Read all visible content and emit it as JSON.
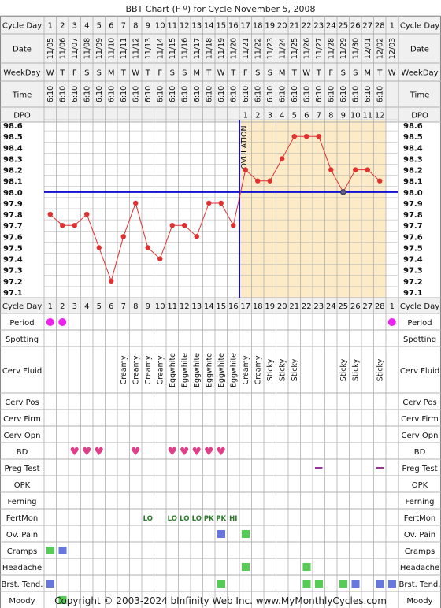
{
  "title": "BBT Chart (F º) for Cycle November 5, 2008",
  "footer": "Copyright © 2003-2024 bInfinity Web Inc.    www.MyMonthlyCycles.com",
  "labels": {
    "cycle_day": "Cycle Day",
    "date": "Date",
    "weekday": "WeekDay",
    "time": "Time",
    "dpo": "DPO",
    "ovulation": "OVULATION"
  },
  "colors": {
    "grid_line": "#b0b0b0",
    "header_bg": "#f0f0f0",
    "post_ovulation_bg": "#fdebc8",
    "temp_line": "#e03030",
    "coverline": "#1010d0",
    "ovulation_line": "#1010d0",
    "period_dot": "#ee22ee",
    "bd_heart": "#e0408a",
    "fertmon_text": "#2a7a2a",
    "green_box": "#55cc55",
    "blue_box": "#6677dd",
    "preg_dash": "#993399"
  },
  "cycle_days": [
    1,
    2,
    3,
    4,
    5,
    6,
    7,
    8,
    9,
    10,
    11,
    12,
    13,
    14,
    15,
    16,
    17,
    18,
    19,
    20,
    21,
    22,
    23,
    24,
    25,
    26,
    27,
    28,
    1
  ],
  "dates": [
    "11/05",
    "11/06",
    "11/07",
    "11/08",
    "11/09",
    "11/10",
    "11/11",
    "11/12",
    "11/13",
    "11/14",
    "11/15",
    "11/16",
    "11/17",
    "11/18",
    "11/19",
    "11/20",
    "11/21",
    "11/22",
    "11/23",
    "11/24",
    "11/25",
    "11/26",
    "11/27",
    "11/28",
    "11/29",
    "11/30",
    "12/01",
    "12/02",
    "12/03"
  ],
  "weekdays": [
    "W",
    "T",
    "F",
    "S",
    "S",
    "M",
    "T",
    "W",
    "T",
    "F",
    "S",
    "S",
    "M",
    "T",
    "W",
    "T",
    "F",
    "S",
    "S",
    "M",
    "T",
    "W",
    "T",
    "F",
    "S",
    "S",
    "M",
    "T",
    "W"
  ],
  "times": [
    "6:10",
    "6:10",
    "6:10",
    "6:10",
    "6:10",
    "6:10",
    "6:10",
    "6:10",
    "6:10",
    "6:10",
    "6:10",
    "6:10",
    "6:10",
    "6:10",
    "6:10",
    "6:10",
    "6:10",
    "6:10",
    "6:10",
    "6:10",
    "6:10",
    "6:10",
    "6:10",
    "6:10",
    "6:10",
    "6:10",
    "6:10",
    "6:10",
    ""
  ],
  "dpo": [
    "",
    "",
    "",
    "",
    "",
    "",
    "",
    "",
    "",
    "",
    "",
    "",
    "",
    "",
    "",
    "",
    "1",
    "2",
    "3",
    "4",
    "5",
    "6",
    "7",
    "8",
    "9",
    "10",
    "11",
    "12",
    ""
  ],
  "chart_data": {
    "type": "line",
    "title": "BBT Chart (F º) for Cycle November 5, 2008",
    "x": [
      1,
      2,
      3,
      4,
      5,
      6,
      7,
      8,
      9,
      10,
      11,
      12,
      13,
      14,
      15,
      16,
      17,
      18,
      19,
      20,
      21,
      22,
      23,
      24,
      25,
      26,
      27,
      28
    ],
    "series": [
      {
        "values": [
          97.8,
          97.7,
          97.7,
          97.8,
          97.5,
          97.2,
          97.6,
          97.9,
          97.5,
          97.4,
          97.7,
          97.7,
          97.6,
          97.9,
          97.9,
          97.7,
          98.2,
          98.1,
          98.1,
          98.3,
          98.5,
          98.5,
          98.5,
          98.2,
          98.0,
          98.2,
          98.2,
          98.1
        ]
      }
    ],
    "y_ticks": [
      "98.6",
      "98.5",
      "98.4",
      "98.3",
      "98.2",
      "98.1",
      "98.0",
      "97.9",
      "97.8",
      "97.7",
      "97.6",
      "97.5",
      "97.4",
      "97.3",
      "97.2",
      "97.1"
    ],
    "ylim": [
      97.1,
      98.6
    ],
    "coverline": 98.0,
    "ovulation_after_day": 16,
    "highlighted_point_day": 25,
    "grid": true
  },
  "rows": [
    {
      "label": "Period",
      "kind": "dots",
      "days": [
        1,
        2,
        29
      ]
    },
    {
      "label": "Spotting",
      "kind": "empty"
    },
    {
      "label": "Cerv Fluid",
      "kind": "text",
      "cells": {
        "7": "Creamy",
        "8": "Creamy",
        "9": "Creamy",
        "10": "Creamy",
        "11": "Eggwhite",
        "12": "Eggwhite",
        "13": "Eggwhite",
        "14": "Eggwhite",
        "15": "Eggwhite",
        "16": "Eggwhite",
        "17": "Creamy",
        "18": "Creamy",
        "19": "Sticky",
        "20": "Sticky",
        "21": "Sticky",
        "25": "Sticky",
        "26": "Sticky",
        "28": "Sticky"
      }
    },
    {
      "label": "Cerv Pos",
      "kind": "empty"
    },
    {
      "label": "Cerv Firm",
      "kind": "empty"
    },
    {
      "label": "Cerv Opn",
      "kind": "empty"
    },
    {
      "label": "BD",
      "kind": "hearts",
      "days": [
        3,
        4,
        5,
        8,
        11,
        12,
        13,
        14,
        15
      ]
    },
    {
      "label": "Preg Test",
      "kind": "dash",
      "days": [
        23,
        28
      ]
    },
    {
      "label": "OPK",
      "kind": "empty"
    },
    {
      "label": "Ferning",
      "kind": "empty"
    },
    {
      "label": "FertMon",
      "kind": "fert",
      "cells": {
        "9": "LO",
        "11": "LO",
        "12": "LO",
        "13": "LO",
        "14": "PK",
        "15": "PK",
        "16": "HI"
      }
    },
    {
      "label": "Ov. Pain",
      "kind": "boxes",
      "cells": {
        "15": "blue",
        "17": "green"
      }
    },
    {
      "label": "Cramps",
      "kind": "boxes",
      "cells": {
        "1": "green",
        "2": "blue"
      }
    },
    {
      "label": "Headache",
      "kind": "boxes",
      "cells": {
        "17": "green",
        "22": "green"
      }
    },
    {
      "label": "Brst. Tend.",
      "kind": "boxes",
      "cells": {
        "1": "blue",
        "15": "green",
        "22": "green",
        "23": "green",
        "25": "green",
        "26": "blue",
        "28": "blue",
        "29": "blue"
      }
    },
    {
      "label": "Moody",
      "kind": "boxes",
      "cells": {
        "2": "green"
      }
    }
  ]
}
